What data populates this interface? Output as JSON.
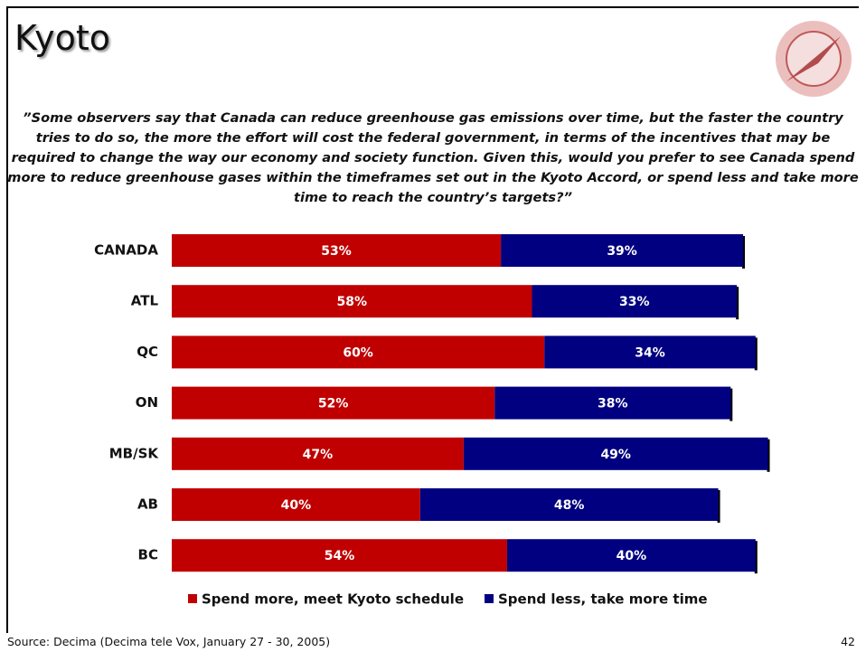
{
  "title": "Kyoto",
  "question": "”Some observers say that Canada can reduce greenhouse gas emissions over time, but the faster the country tries to do so, the more the effort will cost the federal government, in terms of the incentives that may be required to change the way our economy and society function. Given this, would you prefer to see Canada spend more to reduce greenhouse gases within the timeframes set out in the Kyoto Accord, or spend less and take more time to reach the country’s targets?”",
  "chart_data": {
    "type": "stacked-bar-horizontal",
    "categories": [
      "CANADA",
      "ATL",
      "QC",
      "ON",
      "MB/SK",
      "AB",
      "BC"
    ],
    "series": [
      {
        "name": "Spend more, meet Kyoto schedule",
        "color": "#c00000",
        "values": [
          53,
          58,
          60,
          52,
          47,
          40,
          54
        ],
        "value_labels": [
          "53%",
          "58%",
          "60%",
          "52%",
          "47%",
          "40%",
          "54%"
        ]
      },
      {
        "name": "Spend less, take more time",
        "color": "#000080",
        "values": [
          39,
          33,
          34,
          38,
          49,
          48,
          40
        ],
        "value_labels": [
          "39%",
          "33%",
          "34%",
          "38%",
          "49%",
          "48%",
          "40%"
        ]
      }
    ]
  },
  "source": "Source: Decima (Decima tele Vox, January 27 - 30, 2005)",
  "page_number": "42"
}
